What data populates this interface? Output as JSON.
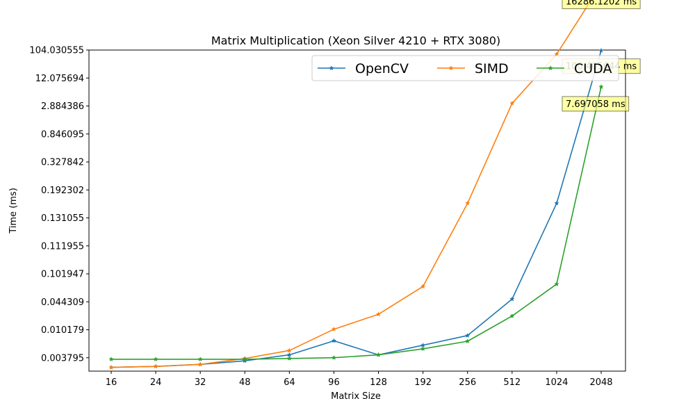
{
  "chart_data": {
    "type": "line",
    "title": "Matrix Multiplication (Xeon Silver 4210 + RTX 3080)",
    "xlabel": "Matrix Size",
    "ylabel": "Time (ms)",
    "categories": [
      "16",
      "24",
      "32",
      "48",
      "64",
      "96",
      "128",
      "192",
      "256",
      "512",
      "1024",
      "2048"
    ],
    "y_tick_labels": [
      "0.003795",
      "0.010179",
      "0.044309",
      "0.101947",
      "0.111955",
      "0.131055",
      "0.192302",
      "0.327842",
      "0.846095",
      "2.884386",
      "12.075694",
      "104.030555"
    ],
    "y_scale": "categorical (non-linear tick labels)",
    "grid": false,
    "legend": {
      "placement": "top-right",
      "columns": 3
    },
    "series": [
      {
        "name": "OpenCV",
        "color": "#1f77b4",
        "marker": "star",
        "values": [
          0.0027,
          0.0028,
          0.003,
          0.0034,
          0.0042,
          0.0069,
          0.0042,
          0.0059,
          0.0083,
          0.048,
          0.16,
          100.405644
        ]
      },
      {
        "name": "SIMD",
        "color": "#ff7f0e",
        "marker": "star",
        "values": [
          0.0027,
          0.0028,
          0.003,
          0.0037,
          0.0049,
          0.0105,
          0.023,
          0.07,
          0.16,
          3.3,
          75,
          16286.1202
        ]
      },
      {
        "name": "CUDA",
        "color": "#2ca02c",
        "marker": "star",
        "values": [
          0.0036,
          0.0036,
          0.0036,
          0.0036,
          0.0037,
          0.0038,
          0.0042,
          0.0052,
          0.0068,
          0.021,
          0.075,
          7.697058
        ]
      }
    ],
    "annotations": [
      {
        "text": "16286.1202 ms",
        "series": "SIMD"
      },
      {
        "text": "100.405644 ms",
        "series": "OpenCV"
      },
      {
        "text": "7.697058 ms",
        "series": "CUDA"
      }
    ],
    "annotation_color": "#ffff66"
  }
}
